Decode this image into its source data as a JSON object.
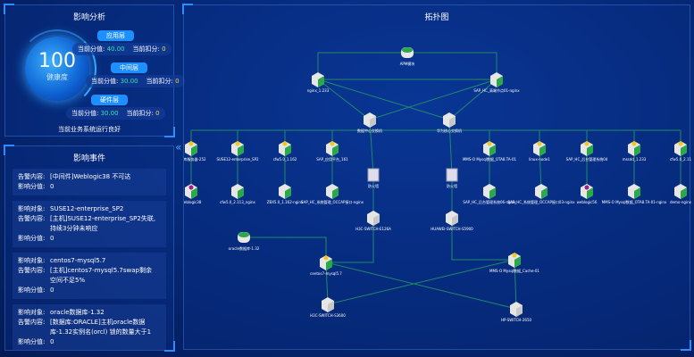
{
  "analysis": {
    "title": "影响分析",
    "score": "100",
    "score_label": "健康度",
    "layers": [
      {
        "name": "应用层",
        "score_label": "当前分值:",
        "score": "40.00",
        "deduct_label": "当前扣分:",
        "deduct": "0"
      },
      {
        "name": "中间层",
        "score_label": "当前分值:",
        "score": "30.00",
        "deduct_label": "当前扣分:",
        "deduct": "0"
      },
      {
        "name": "硬件层",
        "score_label": "当前分值:",
        "score": "30.00",
        "deduct_label": "当前扣分:",
        "deduct": "0"
      }
    ],
    "status": "当前业务系统运行良好"
  },
  "events": {
    "title": "影响事件",
    "items": [
      {
        "rows": [
          [
            "告警内容:",
            "[中间件]Weblogic38 不可达"
          ],
          [
            "影响分值:",
            "0"
          ]
        ]
      },
      {
        "rows": [
          [
            "影响对象:",
            "SUSE12-enterprise_SP2"
          ],
          [
            "告警内容:",
            "[主机]SUSE12-enterprise_SP2失联,持续3分钟未响应"
          ],
          [
            "影响分值:",
            "0"
          ]
        ]
      },
      {
        "rows": [
          [
            "影响对象:",
            "centos7-mysql5.7"
          ],
          [
            "告警内容:",
            "[主机]centos7-mysql5.7swap剩余空间不足5%"
          ],
          [
            "影响分值:",
            "0"
          ]
        ]
      },
      {
        "rows": [
          [
            "影响对象:",
            "oracle数据库-1.32"
          ],
          [
            "告警内容:",
            "[数据库:ORACLE]主机oracle数据库-1.32实例名(orcl) 锁的数量大于1"
          ],
          [
            "影响分值:",
            "0"
          ]
        ]
      }
    ]
  },
  "topology": {
    "title": "拓扑图",
    "colors": {
      "link": "#1f8a6a",
      "host": "#2aa84a",
      "alert": "#f5c518",
      "error": "#a0208a"
    },
    "nodes": [
      {
        "id": "apm",
        "label": "APM模块",
        "type": "db"
      },
      {
        "id": "ng",
        "label": "nginx_1.233",
        "type": "host"
      },
      {
        "id": "sap01",
        "label": "SAP_HC_高端节点01-nginx",
        "type": "host"
      },
      {
        "id": "c1",
        "label": "数据中心交换机",
        "type": "switch"
      },
      {
        "id": "c2",
        "label": "华为核心交换机",
        "type": "switch"
      },
      {
        "id": "a1",
        "label": "数据库服务器-252",
        "type": "warn"
      },
      {
        "id": "a2",
        "label": "SUSE12-enterprise_SP2",
        "type": "warn"
      },
      {
        "id": "a3",
        "label": "cfw5.0_1.162",
        "type": "warn"
      },
      {
        "id": "a4",
        "label": "SAP_应用平台_161",
        "type": "warn"
      },
      {
        "id": "a5",
        "label": "MMS-O Mysql数据_OTA8.TA-01",
        "type": "warn"
      },
      {
        "id": "a6",
        "label": "linux-node1",
        "type": "warn"
      },
      {
        "id": "a7",
        "label": "SAP_HC_后台管理系统04",
        "type": "warn"
      },
      {
        "id": "a8",
        "label": "mssdd_1.233",
        "type": "warn"
      },
      {
        "id": "a9",
        "label": "cfw5.0_2.11",
        "type": "warn"
      },
      {
        "id": "b1",
        "label": "weblogic38",
        "type": "error"
      },
      {
        "id": "b2",
        "label": "cfw5.0_2.113_nginx",
        "type": "host"
      },
      {
        "id": "b3",
        "label": "ZBX5.0_1.162-nginx",
        "type": "host"
      },
      {
        "id": "b4",
        "label": "SAP_HC_系统管理_OCCAP接口-nginx",
        "type": "host"
      },
      {
        "id": "b5",
        "label": "SAP_HC_后台管理系统06-nginx",
        "type": "host"
      },
      {
        "id": "b6",
        "label": "SAP_HC_系统管理_OCCAP接口03-nginx",
        "type": "host"
      },
      {
        "id": "b7",
        "label": "weblogic56",
        "type": "error"
      },
      {
        "id": "b8",
        "label": "MMS-O Mysql数据_OTA8.TA-01-nginx",
        "type": "host"
      },
      {
        "id": "b9",
        "label": "demo-nginx",
        "type": "host"
      },
      {
        "id": "f1",
        "label": "防火墙",
        "type": "fw"
      },
      {
        "id": "f2",
        "label": "防火墙",
        "type": "fw"
      },
      {
        "id": "s1",
        "label": "H3C-SWITCH-E126A",
        "type": "switch"
      },
      {
        "id": "s2",
        "label": "HUAWEI-SWITCH-S5900",
        "type": "switch"
      },
      {
        "id": "ora",
        "label": "oracle数据库-1.32",
        "type": "db"
      },
      {
        "id": "cen",
        "label": "centos7-mysql5.7",
        "type": "warn"
      },
      {
        "id": "cache",
        "label": "MMS-O Mysql数据_Cache-01",
        "type": "warn"
      },
      {
        "id": "s3",
        "label": "H3C-SWITCH-S3600",
        "type": "switch"
      },
      {
        "id": "hp",
        "label": "HP-SWITCH-2650",
        "type": "switch"
      }
    ]
  }
}
